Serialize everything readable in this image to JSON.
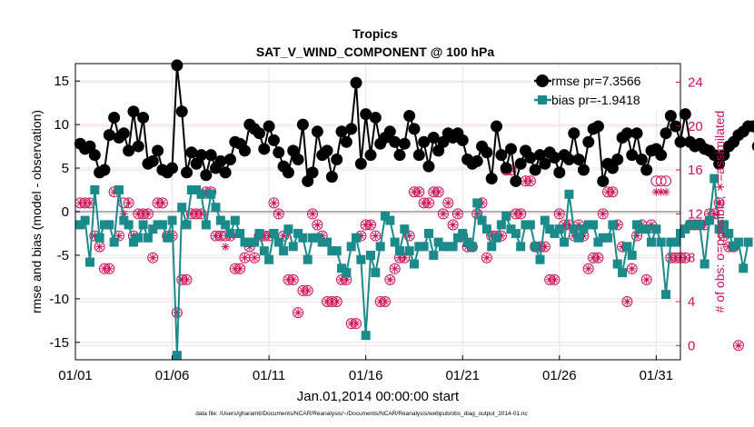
{
  "chart_data": {
    "type": "line",
    "title": "Tropics",
    "subtitle": "SAT_V_WIND_COMPONENT @ 100 hPa",
    "xlabel": "Jan.01,2014 00:00:00 start",
    "ylabel": "rmse and bias (model - observation)",
    "y2label": "# of obs: o=possible; ∗=assimilated",
    "footnote": "data file: /Users/gharamti/Documents/NCAR/Reanalysis/~/Documents/NCAR/Reanalysis/webpub/obs_diag_output_2014-01.nc",
    "x_tick_labels": [
      "01/01",
      "01/06",
      "01/11",
      "01/16",
      "01/21",
      "01/26",
      "01/31"
    ],
    "x_tick_days": [
      1,
      6,
      11,
      16,
      21,
      26,
      31
    ],
    "xlim": [
      1,
      32.25
    ],
    "ylim": [
      -17,
      17
    ],
    "y_ticks": [
      -15,
      -10,
      -5,
      0,
      5,
      10,
      15
    ],
    "y2lim": [
      -1.3,
      25.7
    ],
    "y2_ticks": [
      0,
      4,
      8,
      12,
      16,
      20,
      24
    ],
    "grid": true,
    "legend_position": "top-right",
    "colors": {
      "rmse": "#000000",
      "bias": "#1a8a8a",
      "obs": "#cc1155",
      "zero_line": "#b0b0b0"
    },
    "series": [
      {
        "name": "rmse pr=7.3566",
        "key": "rmse",
        "values": [
          7.8,
          7.2,
          7.5,
          6.5,
          4.5,
          4.8,
          8.8,
          10.8,
          8.5,
          9,
          7,
          11.5,
          7.5,
          10.8,
          5.5,
          5.8,
          7,
          4.8,
          4.5,
          5,
          16.8,
          11.5,
          4.5,
          6.8,
          5.5,
          6.5,
          4.2,
          6.5,
          5,
          5.8,
          4.5,
          6,
          8,
          7.8,
          7,
          10,
          9.5,
          9,
          7.2,
          9.8,
          8.2,
          6.8,
          5.2,
          4.5,
          7,
          6,
          10,
          3.5,
          4.5,
          9.2,
          6.5,
          7,
          4,
          6,
          9.2,
          8,
          9.5,
          14.8,
          5.5,
          11.2,
          6.5,
          10.8,
          7.8,
          8.5,
          9.2,
          8,
          6.5,
          7.8,
          11,
          9.5,
          6.5,
          8,
          5.2,
          8.5,
          7,
          8,
          9,
          8.5,
          9,
          8.2,
          6,
          5.5,
          5.8,
          7.5,
          6.8,
          3.8,
          9.8,
          6.5,
          5,
          7.2,
          3.5,
          5.5,
          7,
          6.2,
          4.8,
          6.5,
          5.5,
          6.8,
          6.2,
          4.5,
          6.5,
          6,
          9,
          6,
          4.8,
          8,
          9.5,
          9.8,
          3.5,
          5.5,
          5,
          6,
          8.5,
          9,
          6.5,
          9,
          6,
          4.8,
          7,
          7.2,
          6.5,
          9,
          11,
          9.8,
          8,
          11.2,
          8,
          7.5,
          7.8,
          7.2,
          7,
          6.5,
          5.5,
          6.5,
          7.5,
          8,
          8.8,
          9.2,
          9.8,
          9.8,
          7.5
        ]
      },
      {
        "name": "bias pr=-1.9418",
        "key": "bias",
        "values": [
          -1.5,
          -1,
          -5.8,
          2.5,
          -3,
          -1.5,
          -1.5,
          -3.5,
          2.5,
          -1,
          -1.5,
          -3.5,
          -3,
          -1.5,
          -3,
          -2,
          -1.5,
          -1.5,
          -3,
          -1,
          -16.5,
          0.5,
          -1.5,
          2.5,
          2.5,
          2,
          -1.5,
          2,
          0.5,
          -1,
          -1.5,
          -2.5,
          -1,
          -2.5,
          -3.5,
          -3.5,
          -3.5,
          -2.5,
          -4.5,
          -5.5,
          -2.5,
          -3.5,
          -4.5,
          -2,
          -4,
          -2.5,
          -3,
          -5.5,
          -3,
          -3,
          -3.5,
          -3.5,
          -4.5,
          -4.5,
          -6.5,
          -7,
          -4,
          -3,
          -5.5,
          -14.2,
          -5,
          -7,
          -4,
          -0.5,
          -1,
          -3.5,
          -4.5,
          -2,
          -4.5,
          -6,
          -4,
          -4,
          -2.5,
          -5,
          -3.5,
          -4,
          -4,
          -4,
          -3,
          -2.5,
          -3.5,
          -4,
          1,
          -1,
          -2,
          -4,
          -3,
          -1.5,
          -0.5,
          -2,
          -2.5,
          -4,
          -1.5,
          -1.5,
          -4,
          -5.5,
          -1,
          -2,
          -2.5,
          -2,
          -3.5,
          2,
          -2,
          -3,
          -2,
          -1.5,
          -1.5,
          -3.5,
          -3,
          -3,
          -1.5,
          -6,
          -7,
          -4,
          -5,
          -1.5,
          -2,
          -2,
          -3.5,
          -2,
          -3.5,
          -9.5,
          -3.5,
          -3.5,
          -2.5,
          -2,
          -1.5,
          -1.5,
          -1.5,
          -6,
          -1,
          3.8,
          -2,
          -1.5,
          -2.5,
          -4,
          -3.5,
          -6.5,
          -3.5
        ]
      },
      {
        "name": "# of obs possible",
        "key": "obs_possible",
        "values": [
          13,
          13,
          13,
          10,
          9,
          7,
          7,
          14,
          10,
          13,
          13,
          10,
          12,
          12,
          12,
          8,
          13,
          13,
          10,
          10,
          3,
          6,
          6,
          12,
          12,
          12,
          14,
          14,
          10,
          10,
          10,
          10,
          7,
          7,
          8,
          9,
          8,
          10,
          10,
          10,
          13,
          12,
          10,
          6,
          6,
          3,
          5,
          5,
          12,
          11,
          10,
          4,
          4,
          4,
          6,
          6,
          2,
          2,
          10,
          11,
          11,
          10,
          4,
          4,
          6,
          7,
          8,
          8,
          10,
          14,
          14,
          13,
          13,
          14,
          14,
          12,
          13,
          11,
          12,
          10,
          9,
          9,
          12,
          13,
          8,
          10,
          10,
          10,
          16,
          16,
          12,
          12,
          15,
          15,
          9,
          9,
          9,
          6,
          6,
          12,
          11,
          11,
          10,
          11,
          10,
          7,
          8,
          8,
          12,
          14,
          14,
          11,
          9,
          4,
          7,
          10,
          11,
          6,
          11,
          15,
          15,
          15,
          8,
          8,
          8,
          8,
          11,
          11,
          11,
          11,
          12,
          12,
          13,
          10,
          9,
          9,
          0
        ]
      },
      {
        "name": "# of obs assimilated",
        "key": "obs_assimilated",
        "values": [
          13,
          13,
          13,
          10,
          9,
          7,
          7,
          14,
          10,
          12,
          13,
          10,
          12,
          12,
          12,
          8,
          13,
          13,
          10,
          10,
          3,
          6,
          6,
          12,
          12,
          12,
          14,
          14,
          10,
          10,
          9,
          10,
          7,
          7,
          8,
          9,
          8,
          10,
          10,
          10,
          13,
          12,
          10,
          6,
          6,
          3,
          5,
          5,
          12,
          11,
          10,
          4,
          4,
          4,
          6,
          6,
          2,
          2,
          10,
          11,
          11,
          10,
          4,
          4,
          6,
          7,
          8,
          8,
          10,
          14,
          14,
          13,
          13,
          14,
          14,
          12,
          13,
          11,
          12,
          10,
          9,
          9,
          12,
          13,
          8,
          10,
          10,
          10,
          16,
          16,
          12,
          12,
          15,
          15,
          9,
          9,
          9,
          6,
          6,
          12,
          11,
          11,
          10,
          11,
          10,
          7,
          8,
          8,
          12,
          14,
          14,
          11,
          9,
          4,
          7,
          10,
          11,
          6,
          11,
          14,
          14,
          14,
          8,
          8,
          8,
          8,
          11,
          11,
          11,
          11,
          12,
          12,
          13,
          10,
          9,
          9,
          0
        ]
      }
    ]
  }
}
